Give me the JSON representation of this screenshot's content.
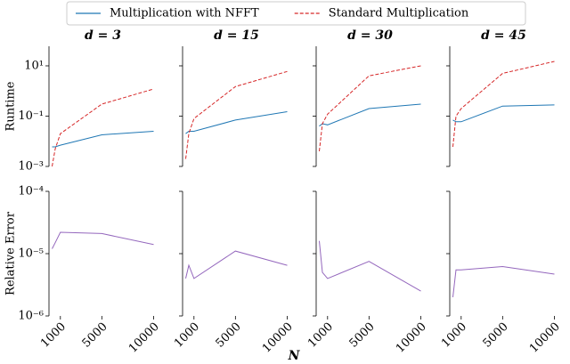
{
  "chart_data": {
    "type": "line",
    "log_y": true,
    "xlabel": "N",
    "legend_loc": "upper center",
    "legend": [
      {
        "name": "Multiplication with NFFT",
        "color": "#1f77b4",
        "dash": "solid"
      },
      {
        "name": "Standard Multiplication",
        "color": "#d62728",
        "dash": "dashed"
      }
    ],
    "columns": [
      "d = 3",
      "d = 15",
      "d = 30",
      "d = 45"
    ],
    "x": [
      200,
      500,
      1000,
      5000,
      10000
    ],
    "xlim": [
      -100,
      10300
    ],
    "xticks": [
      1000,
      5000,
      10000
    ],
    "rows": [
      {
        "ylabel": "Runtime",
        "ylim": [
          0.001,
          60
        ],
        "yticks": [
          {
            "value": 0.001,
            "label": "10⁻³"
          },
          {
            "value": 0.1,
            "label": "10⁻¹"
          },
          {
            "value": 10,
            "label": "10¹"
          }
        ],
        "panels": [
          {
            "series": [
              {
                "color": "#1f77b4",
                "dash": "solid",
                "values": [
                  0.006,
                  0.006,
                  0.007,
                  0.018,
                  0.025
                ]
              },
              {
                "color": "#d62728",
                "dash": "dashed",
                "values": [
                  0.001,
                  0.005,
                  0.02,
                  0.3,
                  1.2
                ]
              }
            ]
          },
          {
            "series": [
              {
                "color": "#1f77b4",
                "dash": "solid",
                "values": [
                  0.02,
                  0.025,
                  0.025,
                  0.07,
                  0.15
                ]
              },
              {
                "color": "#d62728",
                "dash": "dashed",
                "values": [
                  0.002,
                  0.02,
                  0.08,
                  1.5,
                  6
                ]
              }
            ]
          },
          {
            "series": [
              {
                "color": "#1f77b4",
                "dash": "solid",
                "values": [
                  0.04,
                  0.05,
                  0.045,
                  0.2,
                  0.3
                ]
              },
              {
                "color": "#d62728",
                "dash": "dashed",
                "values": [
                  0.004,
                  0.05,
                  0.12,
                  4,
                  10
                ]
              }
            ]
          },
          {
            "series": [
              {
                "color": "#1f77b4",
                "dash": "solid",
                "values": [
                  0.07,
                  0.06,
                  0.06,
                  0.25,
                  0.28
                ]
              },
              {
                "color": "#d62728",
                "dash": "dashed",
                "values": [
                  0.006,
                  0.1,
                  0.2,
                  5,
                  15
                ]
              }
            ]
          }
        ]
      },
      {
        "ylabel": "Relative Error",
        "ylim": [
          1e-06,
          0.0001
        ],
        "yticks": [
          {
            "value": 1e-06,
            "label": "10⁻⁶"
          },
          {
            "value": 1e-05,
            "label": "10⁻⁵"
          },
          {
            "value": 0.0001,
            "label": "10⁻⁴"
          }
        ],
        "panels": [
          {
            "series": [
              {
                "color": "#9467bd",
                "dash": "solid",
                "values": [
                  1.2e-05,
                  1.5e-05,
                  2.2e-05,
                  2.1e-05,
                  1.4e-05
                ]
              }
            ]
          },
          {
            "series": [
              {
                "color": "#9467bd",
                "dash": "solid",
                "values": [
                  4e-06,
                  6.5e-06,
                  4e-06,
                  1.1e-05,
                  6.5e-06
                ]
              }
            ]
          },
          {
            "series": [
              {
                "color": "#9467bd",
                "dash": "solid",
                "values": [
                  1.6e-05,
                  5e-06,
                  4e-06,
                  7.5e-06,
                  2.5e-06
                ]
              }
            ]
          },
          {
            "series": [
              {
                "color": "#9467bd",
                "dash": "solid",
                "values": [
                  2e-06,
                  5.5e-06,
                  5.5e-06,
                  6.2e-06,
                  4.7e-06
                ]
              }
            ]
          }
        ]
      }
    ]
  }
}
